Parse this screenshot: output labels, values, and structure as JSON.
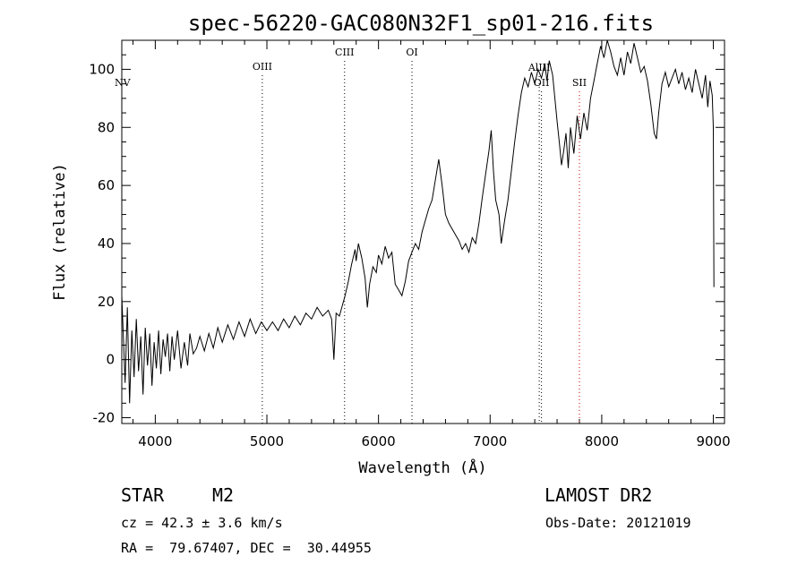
{
  "chart_data": {
    "type": "line",
    "title": "spec-56220-GAC080N32F1_sp01-216.fits",
    "xlabel": "Wavelength (Å)",
    "ylabel": "Flux (relative)",
    "xlim": [
      3700,
      9100
    ],
    "ylim": [
      -22,
      110
    ],
    "xticks": [
      4000,
      5000,
      6000,
      7000,
      8000,
      9000
    ],
    "yticks": [
      -20,
      0,
      20,
      40,
      60,
      80,
      100
    ],
    "grid": false,
    "series": [
      {
        "color": "#000000",
        "points": [
          [
            3700,
            22
          ],
          [
            3730,
            -8
          ],
          [
            3750,
            18
          ],
          [
            3770,
            -15
          ],
          [
            3790,
            10
          ],
          [
            3810,
            -6
          ],
          [
            3830,
            14
          ],
          [
            3850,
            -4
          ],
          [
            3870,
            8
          ],
          [
            3890,
            -12
          ],
          [
            3910,
            11
          ],
          [
            3930,
            -2
          ],
          [
            3950,
            9
          ],
          [
            3970,
            -9
          ],
          [
            3990,
            6
          ],
          [
            4010,
            -3
          ],
          [
            4030,
            10
          ],
          [
            4050,
            -5
          ],
          [
            4070,
            7
          ],
          [
            4090,
            1
          ],
          [
            4110,
            9
          ],
          [
            4130,
            -4
          ],
          [
            4150,
            8
          ],
          [
            4170,
            0
          ],
          [
            4200,
            10
          ],
          [
            4230,
            -3
          ],
          [
            4260,
            6
          ],
          [
            4290,
            -2
          ],
          [
            4310,
            9
          ],
          [
            4340,
            2
          ],
          [
            4370,
            4
          ],
          [
            4400,
            8
          ],
          [
            4440,
            3
          ],
          [
            4480,
            9
          ],
          [
            4520,
            4
          ],
          [
            4560,
            11
          ],
          [
            4600,
            6
          ],
          [
            4650,
            12
          ],
          [
            4700,
            7
          ],
          [
            4750,
            13
          ],
          [
            4800,
            8
          ],
          [
            4850,
            14
          ],
          [
            4900,
            9
          ],
          [
            4950,
            13
          ],
          [
            5000,
            10
          ],
          [
            5050,
            13
          ],
          [
            5100,
            10
          ],
          [
            5150,
            14
          ],
          [
            5200,
            11
          ],
          [
            5250,
            15
          ],
          [
            5300,
            12
          ],
          [
            5350,
            16
          ],
          [
            5400,
            14
          ],
          [
            5450,
            18
          ],
          [
            5500,
            15
          ],
          [
            5550,
            17
          ],
          [
            5580,
            14
          ],
          [
            5600,
            0
          ],
          [
            5620,
            16
          ],
          [
            5650,
            15
          ],
          [
            5700,
            22
          ],
          [
            5730,
            27
          ],
          [
            5760,
            33
          ],
          [
            5790,
            38
          ],
          [
            5800,
            34
          ],
          [
            5820,
            40
          ],
          [
            5850,
            35
          ],
          [
            5880,
            28
          ],
          [
            5900,
            18
          ],
          [
            5920,
            26
          ],
          [
            5950,
            32
          ],
          [
            5980,
            30
          ],
          [
            6000,
            36
          ],
          [
            6030,
            33
          ],
          [
            6060,
            39
          ],
          [
            6090,
            35
          ],
          [
            6120,
            37
          ],
          [
            6150,
            26
          ],
          [
            6180,
            24
          ],
          [
            6210,
            22
          ],
          [
            6240,
            27
          ],
          [
            6270,
            34
          ],
          [
            6300,
            37
          ],
          [
            6330,
            40
          ],
          [
            6360,
            38
          ],
          [
            6390,
            44
          ],
          [
            6420,
            48
          ],
          [
            6450,
            52
          ],
          [
            6480,
            55
          ],
          [
            6510,
            62
          ],
          [
            6540,
            69
          ],
          [
            6570,
            60
          ],
          [
            6600,
            50
          ],
          [
            6630,
            47
          ],
          [
            6660,
            45
          ],
          [
            6690,
            43
          ],
          [
            6720,
            41
          ],
          [
            6750,
            38
          ],
          [
            6780,
            40
          ],
          [
            6810,
            37
          ],
          [
            6840,
            42
          ],
          [
            6870,
            40
          ],
          [
            6900,
            47
          ],
          [
            6930,
            56
          ],
          [
            6960,
            64
          ],
          [
            6990,
            72
          ],
          [
            7010,
            79
          ],
          [
            7030,
            65
          ],
          [
            7050,
            55
          ],
          [
            7080,
            50
          ],
          [
            7100,
            40
          ],
          [
            7130,
            48
          ],
          [
            7160,
            55
          ],
          [
            7190,
            65
          ],
          [
            7220,
            75
          ],
          [
            7250,
            84
          ],
          [
            7280,
            92
          ],
          [
            7310,
            97
          ],
          [
            7340,
            94
          ],
          [
            7370,
            99
          ],
          [
            7400,
            95
          ],
          [
            7430,
            100
          ],
          [
            7460,
            97
          ],
          [
            7490,
            102
          ],
          [
            7510,
            96
          ],
          [
            7530,
            103
          ],
          [
            7560,
            98
          ],
          [
            7580,
            90
          ],
          [
            7600,
            82
          ],
          [
            7620,
            75
          ],
          [
            7640,
            67
          ],
          [
            7660,
            72
          ],
          [
            7680,
            78
          ],
          [
            7700,
            66
          ],
          [
            7720,
            80
          ],
          [
            7750,
            71
          ],
          [
            7780,
            84
          ],
          [
            7810,
            76
          ],
          [
            7840,
            85
          ],
          [
            7870,
            79
          ],
          [
            7900,
            90
          ],
          [
            7930,
            96
          ],
          [
            7960,
            102
          ],
          [
            7990,
            108
          ],
          [
            8020,
            104
          ],
          [
            8050,
            110
          ],
          [
            8080,
            106
          ],
          [
            8110,
            101
          ],
          [
            8140,
            98
          ],
          [
            8170,
            104
          ],
          [
            8200,
            98
          ],
          [
            8230,
            106
          ],
          [
            8260,
            102
          ],
          [
            8290,
            109
          ],
          [
            8320,
            104
          ],
          [
            8350,
            99
          ],
          [
            8380,
            101
          ],
          [
            8410,
            96
          ],
          [
            8440,
            88
          ],
          [
            8470,
            78
          ],
          [
            8490,
            76
          ],
          [
            8510,
            85
          ],
          [
            8540,
            95
          ],
          [
            8570,
            99
          ],
          [
            8600,
            94
          ],
          [
            8630,
            97
          ],
          [
            8660,
            100
          ],
          [
            8690,
            95
          ],
          [
            8720,
            99
          ],
          [
            8750,
            93
          ],
          [
            8780,
            97
          ],
          [
            8810,
            92
          ],
          [
            8840,
            100
          ],
          [
            8870,
            95
          ],
          [
            8900,
            90
          ],
          [
            8930,
            98
          ],
          [
            8950,
            87
          ],
          [
            8970,
            96
          ],
          [
            8990,
            91
          ],
          [
            9000,
            80
          ],
          [
            9005,
            25
          ]
        ]
      }
    ],
    "lines": [
      {
        "label": "NV",
        "x": 3740,
        "color": "#000000"
      },
      {
        "label": "OIII",
        "x": 4959,
        "color": "#000000"
      },
      {
        "label": "CIII",
        "x": 5696,
        "color": "#000000"
      },
      {
        "label": "OI",
        "x": 6300,
        "color": "#000000"
      },
      {
        "label": "AlIII",
        "x": 7440,
        "color": "#000000"
      },
      {
        "label": "OII",
        "x": 7460,
        "color": "#000000"
      },
      {
        "label": "SII",
        "x": 7800,
        "color": "#cc0000"
      }
    ]
  },
  "info": {
    "object_class": "STAR",
    "subclass": "M2",
    "survey": "LAMOST DR2",
    "cz": "cz = 42.3 ± 3.6 km/s",
    "obs_date": "Obs-Date: 20121019",
    "coords": "RA =  79.67407, DEC =  30.44955"
  }
}
